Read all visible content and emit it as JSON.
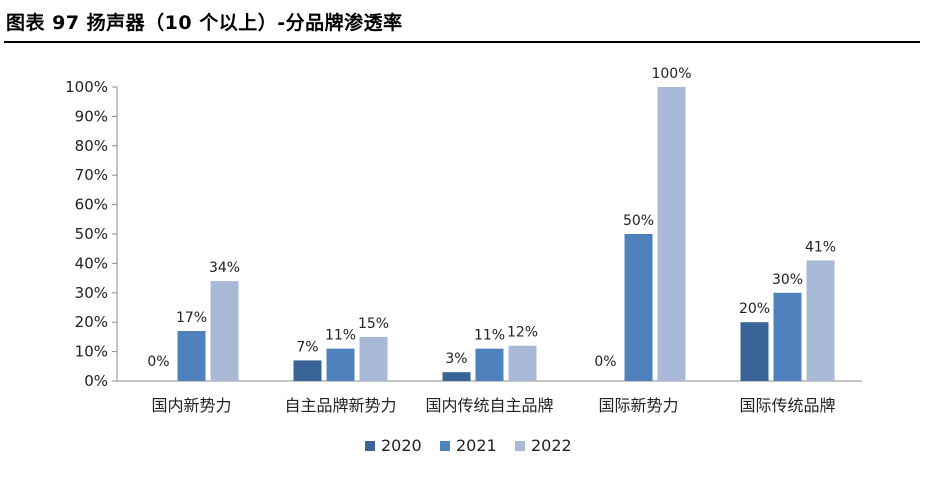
{
  "header": {
    "title": "图表 97 扬声器（10 个以上）-分品牌渗透率"
  },
  "chart_data": {
    "type": "bar",
    "title": "",
    "xlabel": "",
    "ylabel": "",
    "ylim": [
      0,
      100
    ],
    "y_ticks": [
      "0%",
      "10%",
      "20%",
      "30%",
      "40%",
      "50%",
      "60%",
      "70%",
      "80%",
      "90%",
      "100%"
    ],
    "categories": [
      "国内新势力",
      "自主品牌新势力",
      "国内传统自主品牌",
      "国际新势力",
      "国际传统品牌"
    ],
    "series": [
      {
        "name": "2020",
        "color": "#3a6496",
        "values": [
          0,
          7,
          3,
          0,
          20
        ]
      },
      {
        "name": "2021",
        "color": "#4f81bd",
        "values": [
          17,
          11,
          11,
          50,
          30
        ]
      },
      {
        "name": "2022",
        "color": "#a9bad9",
        "values": [
          34,
          15,
          12,
          100,
          41
        ]
      }
    ],
    "legend": "bottom",
    "grid": false
  }
}
